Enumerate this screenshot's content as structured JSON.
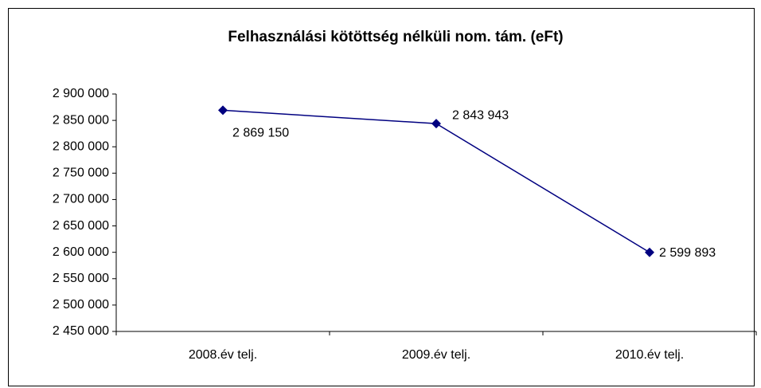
{
  "chart_data": {
    "type": "line",
    "title": "Felhasználási kötöttség nélküli nom. tám. (eFt)",
    "categories": [
      "2008.év telj.",
      "2009.év telj.",
      "2010.év telj."
    ],
    "series": [
      {
        "name": "Felhasználási kötöttség nélküli nom. tám. (eFt)",
        "color": "#000080",
        "values": [
          2869150,
          2843943,
          2599893
        ],
        "value_labels": [
          "2 869 150",
          "2 843 943",
          "2 599 893"
        ]
      }
    ],
    "ylim": [
      2450000,
      2900000
    ],
    "yticks": [
      {
        "value": 2450000,
        "label": "2 450 000"
      },
      {
        "value": 2500000,
        "label": "2 500 000"
      },
      {
        "value": 2550000,
        "label": "2 550 000"
      },
      {
        "value": 2600000,
        "label": "2 600 000"
      },
      {
        "value": 2650000,
        "label": "2 650 000"
      },
      {
        "value": 2700000,
        "label": "2 700 000"
      },
      {
        "value": 2750000,
        "label": "2 750 000"
      },
      {
        "value": 2800000,
        "label": "2 800 000"
      },
      {
        "value": 2850000,
        "label": "2 850 000"
      },
      {
        "value": 2900000,
        "label": "2 900 000"
      }
    ],
    "grid": false
  }
}
